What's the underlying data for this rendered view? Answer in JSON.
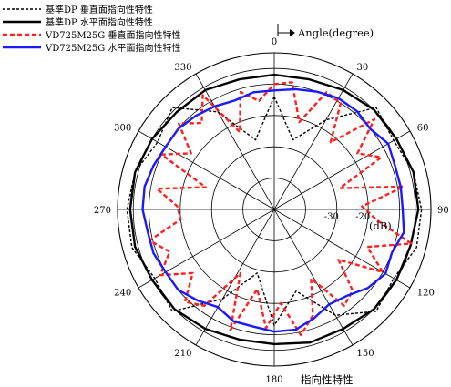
{
  "chart_data": {
    "type": "polar",
    "angle_axis": {
      "label": "Angle(degree)",
      "ticks": [
        0,
        30,
        60,
        90,
        120,
        150,
        180,
        210,
        240,
        270,
        300,
        330
      ],
      "direction": "clockwise",
      "zero_at": "top"
    },
    "radial_axis": {
      "unit": "(dB)",
      "range": [
        -50,
        0
      ],
      "rings": [
        -40,
        -30,
        -20,
        -10,
        -5,
        0
      ],
      "tick_labels": [
        {
          "value": -30,
          "text": "-30"
        },
        {
          "value": -20,
          "text": "-20"
        }
      ]
    },
    "legend_position": "top-left",
    "caption_partial": "指向性特性",
    "series": [
      {
        "name": "基準DP 垂直面指向性特性",
        "color": "#000000",
        "style": "dashed",
        "width": 1.4,
        "angles": [
          0,
          15,
          30,
          45,
          60,
          75,
          90,
          105,
          120,
          135,
          150,
          165,
          180,
          195,
          210,
          225,
          240,
          255,
          270,
          285,
          300,
          315,
          330,
          345,
          360
        ],
        "values": [
          -14,
          -27,
          -17,
          -4,
          -6,
          -4,
          -3,
          -3,
          -6,
          -4,
          -11,
          -23,
          -13,
          -29,
          -17,
          -4,
          -6,
          -3,
          -3,
          -4,
          -7,
          -4,
          -14,
          -27,
          -14
        ]
      },
      {
        "name": "基準DP 水平面指向性特性",
        "color": "#000000",
        "style": "solid",
        "width": 2.4,
        "angles": [
          0,
          15,
          30,
          45,
          60,
          75,
          90,
          105,
          120,
          135,
          150,
          165,
          180,
          195,
          210,
          225,
          240,
          255,
          270,
          285,
          300,
          315,
          330,
          345,
          360
        ],
        "values": [
          -7,
          -7,
          -6,
          -5,
          -5,
          -4,
          -4,
          -5,
          -5,
          -5,
          -6,
          -6,
          -7,
          -7,
          -6,
          -5,
          -5,
          -4,
          -4,
          -4,
          -5,
          -6,
          -6,
          -7,
          -7
        ]
      },
      {
        "name": "VD725M25G 垂直面指向性特性",
        "color": "#ff2020",
        "style": "dashed",
        "width": 2.4,
        "angles": [
          0,
          8,
          16,
          24,
          32,
          40,
          48,
          56,
          64,
          72,
          80,
          88,
          96,
          104,
          112,
          120,
          128,
          136,
          144,
          152,
          160,
          168,
          176,
          184,
          192,
          200,
          208,
          216,
          224,
          232,
          240,
          248,
          256,
          264,
          272,
          280,
          288,
          296,
          304,
          312,
          320,
          328,
          336,
          344,
          352,
          360
        ],
        "values": [
          -10,
          -9,
          -21,
          -9,
          -10,
          -22,
          -7,
          -18,
          -12,
          -28,
          -8,
          -22,
          -17,
          -5,
          -18,
          -10,
          -24,
          -14,
          -12,
          -25,
          -14,
          -9,
          -20,
          -12,
          -24,
          -9,
          -27,
          -12,
          -9,
          -17,
          -8,
          -14,
          -9,
          -20,
          -19,
          -12,
          -27,
          -10,
          -18,
          -9,
          -14,
          -7,
          -23,
          -11,
          -15,
          -10
        ]
      },
      {
        "name": "VD725M25G 水平面指向性特性",
        "color": "#1a1aff",
        "style": "solid",
        "width": 2.4,
        "angles": [
          0,
          10,
          20,
          30,
          40,
          50,
          60,
          70,
          80,
          90,
          100,
          110,
          120,
          130,
          140,
          150,
          160,
          170,
          180,
          190,
          200,
          210,
          220,
          230,
          240,
          250,
          260,
          270,
          280,
          290,
          300,
          310,
          320,
          330,
          340,
          350,
          360
        ],
        "values": [
          -12,
          -11,
          -10,
          -9,
          -9,
          -10,
          -8,
          -9,
          -9,
          -9,
          -8,
          -10,
          -9,
          -11,
          -14,
          -15,
          -13,
          -11,
          -11,
          -12,
          -12,
          -14,
          -12,
          -10,
          -10,
          -9,
          -9,
          -8,
          -8,
          -9,
          -10,
          -10,
          -11,
          -12,
          -13,
          -12,
          -12
        ]
      }
    ]
  }
}
